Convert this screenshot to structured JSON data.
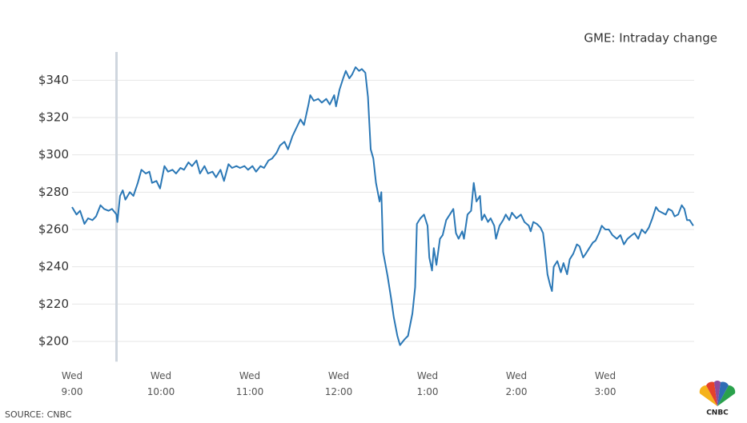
{
  "chart_data": {
    "type": "line",
    "subtitle": "GME: Intraday change",
    "source": "SOURCE: CNBC",
    "logo": "CNBC",
    "x": [
      9.0,
      9.05,
      9.09,
      9.14,
      9.18,
      9.23,
      9.27,
      9.32,
      9.36,
      9.41,
      9.45,
      9.5,
      9.51,
      9.54,
      9.57,
      9.6,
      9.65,
      9.69,
      9.74,
      9.78,
      9.83,
      9.87,
      9.9,
      9.95,
      9.99,
      10.04,
      10.08,
      10.13,
      10.17,
      10.22,
      10.26,
      10.31,
      10.35,
      10.4,
      10.44,
      10.49,
      10.53,
      10.58,
      10.62,
      10.67,
      10.71,
      10.76,
      10.8,
      10.85,
      10.89,
      10.94,
      10.98,
      11.03,
      11.07,
      11.12,
      11.16,
      11.21,
      11.25,
      11.3,
      11.34,
      11.39,
      11.43,
      11.48,
      11.52,
      11.57,
      11.61,
      11.66,
      11.68,
      11.72,
      11.77,
      11.81,
      11.86,
      11.9,
      11.95,
      11.97,
      12.01,
      12.05,
      12.08,
      12.12,
      12.15,
      12.19,
      12.23,
      12.26,
      12.3,
      12.33,
      12.36,
      12.39,
      12.42,
      12.46,
      12.48,
      12.5,
      12.55,
      12.59,
      12.62,
      12.66,
      12.69,
      12.74,
      12.78,
      12.83,
      12.86,
      12.88,
      12.92,
      12.96,
      13.0,
      13.02,
      13.05,
      13.07,
      13.1,
      13.14,
      13.17,
      13.21,
      13.25,
      13.29,
      13.32,
      13.35,
      13.39,
      13.41,
      13.45,
      13.49,
      13.52,
      13.55,
      13.59,
      13.61,
      13.64,
      13.68,
      13.71,
      13.75,
      13.77,
      13.81,
      13.85,
      13.88,
      13.92,
      13.95,
      14.0,
      14.05,
      14.09,
      14.14,
      14.16,
      14.19,
      14.23,
      14.27,
      14.3,
      14.32,
      14.35,
      14.38,
      14.4,
      14.42,
      14.46,
      14.5,
      14.53,
      14.57,
      14.6,
      14.64,
      14.68,
      14.71,
      14.75,
      14.78,
      14.82,
      14.86,
      14.89,
      14.93,
      14.96,
      15.0,
      15.04,
      15.08,
      15.13,
      15.17,
      15.21,
      15.25,
      15.3,
      15.33,
      15.37,
      15.41,
      15.45,
      15.49,
      15.53,
      15.57,
      15.6,
      15.64,
      15.68,
      15.71,
      15.75,
      15.78,
      15.82,
      15.86,
      15.89,
      15.92,
      15.95,
      15.99
    ],
    "series": [
      {
        "name": "GME",
        "color": "#2b78b6",
        "values": [
          272,
          268,
          270,
          263,
          266,
          265,
          267,
          273,
          271,
          270,
          271,
          268,
          264,
          278,
          281,
          276,
          280,
          278,
          285,
          292,
          290,
          291,
          285,
          286,
          282,
          294,
          291,
          292,
          290,
          293,
          292,
          296,
          294,
          297,
          290,
          294,
          290,
          291,
          288,
          292,
          286,
          295,
          293,
          294,
          293,
          294,
          292,
          294,
          291,
          294,
          293,
          297,
          298,
          301,
          305,
          307,
          303,
          310,
          314,
          319,
          316,
          327,
          332,
          329,
          330,
          328,
          330,
          327,
          332,
          326,
          335,
          341,
          345,
          341,
          343,
          347,
          345,
          346,
          344,
          331,
          303,
          298,
          285,
          275,
          280,
          248,
          235,
          223,
          213,
          203,
          198,
          201,
          203,
          215,
          229,
          263,
          266,
          268,
          262,
          245,
          238,
          250,
          241,
          255,
          257,
          265,
          268,
          271,
          258,
          255,
          259,
          255,
          268,
          270,
          285,
          275,
          278,
          265,
          268,
          264,
          266,
          262,
          255,
          262,
          265,
          268,
          265,
          269,
          266,
          268,
          264,
          262,
          259,
          264,
          263,
          261,
          258,
          250,
          236,
          230,
          227,
          240,
          243,
          237,
          242,
          236,
          244,
          247,
          252,
          251,
          245,
          247,
          250,
          253,
          254,
          258,
          262,
          260,
          260,
          257,
          255,
          257,
          252,
          255,
          257,
          258,
          255,
          260,
          258,
          261,
          266,
          272,
          270,
          269,
          268,
          271,
          270,
          267,
          268,
          273,
          271,
          265,
          265,
          262
        ]
      }
    ],
    "vline": 9.5,
    "xlim": [
      9,
      16
    ],
    "xticks": [
      {
        "value": 9,
        "label": "Wed 9:00"
      },
      {
        "value": 10,
        "label": "Wed 10:00"
      },
      {
        "value": 11,
        "label": "Wed 11:00"
      },
      {
        "value": 12,
        "label": "Wed 12:00"
      },
      {
        "value": 13,
        "label": "Wed 1:00"
      },
      {
        "value": 14,
        "label": "Wed 2:00"
      },
      {
        "value": 15,
        "label": "Wed 3:00"
      }
    ],
    "ylim": [
      190,
      350
    ],
    "yticks": [
      {
        "value": 200,
        "label": "$200"
      },
      {
        "value": 220,
        "label": "$220"
      },
      {
        "value": 240,
        "label": "$240"
      },
      {
        "value": 260,
        "label": "$260"
      },
      {
        "value": 280,
        "label": "$280"
      },
      {
        "value": 300,
        "label": "$300"
      },
      {
        "value": 320,
        "label": "$320"
      },
      {
        "value": 340,
        "label": "$340"
      }
    ],
    "grid": true
  }
}
